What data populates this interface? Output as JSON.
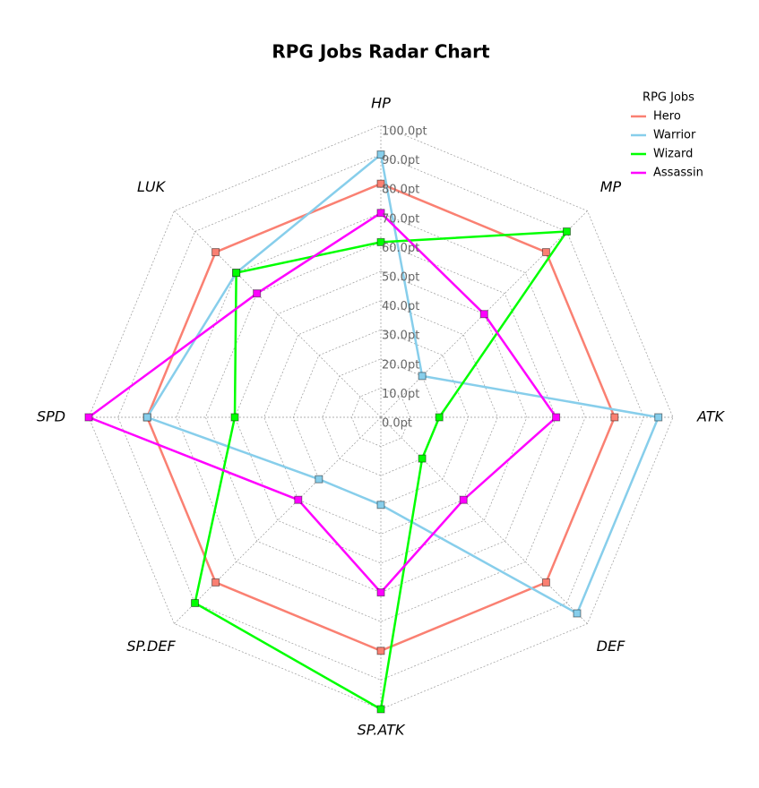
{
  "chart_data": {
    "type": "radar",
    "title": "RPG Jobs Radar Chart",
    "categories": [
      "HP",
      "MP",
      "ATK",
      "DEF",
      "SP.ATK",
      "SP.DEF",
      "SPD",
      "LUK"
    ],
    "rlim": [
      0,
      100
    ],
    "rticks": [
      {
        "value": 0,
        "label": "0.0pt"
      },
      {
        "value": 10,
        "label": "10.0pt"
      },
      {
        "value": 20,
        "label": "20.0pt"
      },
      {
        "value": 30,
        "label": "30.0pt"
      },
      {
        "value": 40,
        "label": "40.0pt"
      },
      {
        "value": 50,
        "label": "50.0pt"
      },
      {
        "value": 60,
        "label": "60.0pt"
      },
      {
        "value": 70,
        "label": "70.0pt"
      },
      {
        "value": 80,
        "label": "80.0pt"
      },
      {
        "value": 90,
        "label": "90.0pt"
      },
      {
        "value": 100,
        "label": "100.0pt"
      }
    ],
    "grid": true,
    "legend_title": "RPG Jobs",
    "legend": "upper right",
    "series": [
      {
        "name": "Hero",
        "color": "#fa8072",
        "values": [
          80,
          80,
          80,
          80,
          80,
          80,
          80,
          80
        ]
      },
      {
        "name": "Warrior",
        "color": "#87ceeb",
        "values": [
          90,
          20,
          95,
          95,
          30,
          30,
          80,
          70
        ]
      },
      {
        "name": "Wizard",
        "color": "#00ff00",
        "values": [
          60,
          90,
          20,
          20,
          100,
          90,
          50,
          70
        ]
      },
      {
        "name": "Assassin",
        "color": "#ff00ff",
        "values": [
          70,
          50,
          60,
          40,
          60,
          40,
          100,
          60
        ]
      }
    ]
  }
}
